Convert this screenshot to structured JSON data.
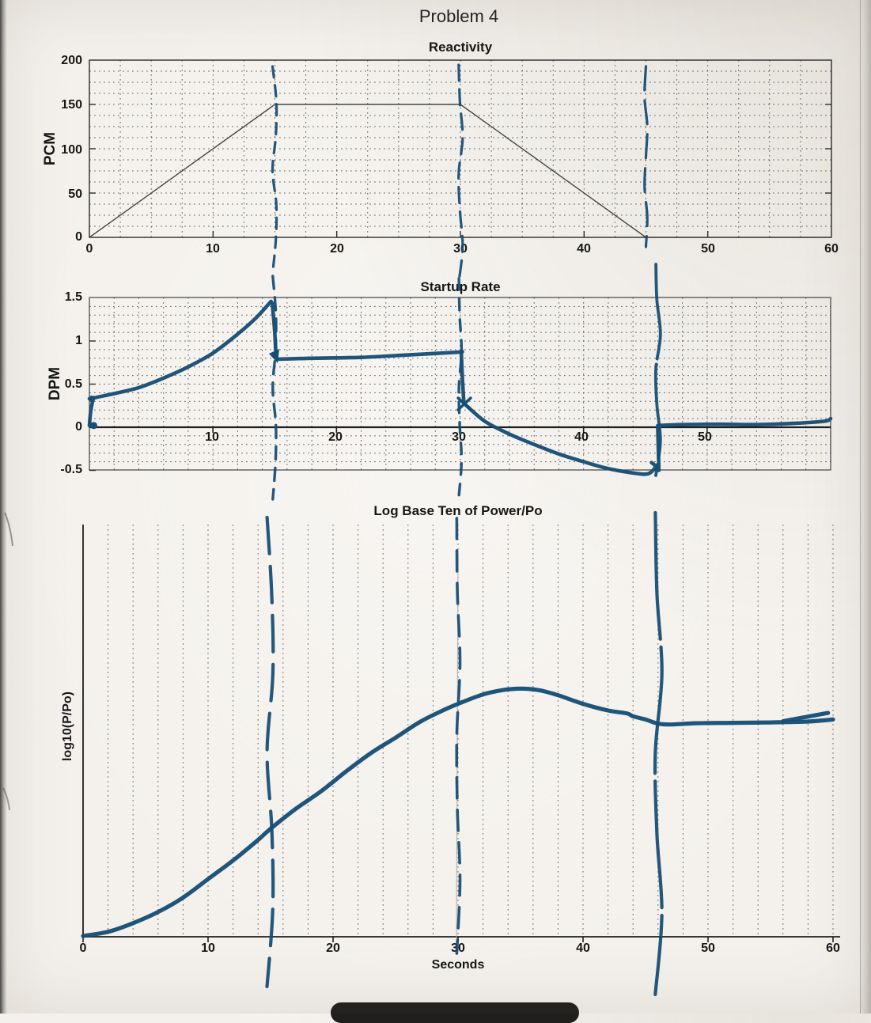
{
  "page": {
    "title": "Problem 4"
  },
  "charts": [
    {
      "id": "reactivity",
      "title": "Reactivity",
      "ylabel": "PCM",
      "y_ticks": [
        "200",
        "150",
        "100",
        "50",
        "0"
      ],
      "x_ticks": [
        "0",
        "10",
        "20",
        "30",
        "40",
        "50",
        "60"
      ]
    },
    {
      "id": "startup-rate",
      "title": "Startup Rate",
      "ylabel": "DPM",
      "y_ticks": [
        "1.5",
        "1",
        "0.5",
        "0",
        "-0.5"
      ],
      "x_ticks": [
        "10",
        "20",
        "30",
        "40",
        "50"
      ]
    },
    {
      "id": "log-power",
      "title": "Log Base Ten of Power/Po",
      "ylabel": "log10(P/Po)",
      "xlabel": "Seconds",
      "x_ticks": [
        "0",
        "10",
        "20",
        "30",
        "40",
        "50",
        "60"
      ]
    }
  ],
  "chart_data": [
    {
      "type": "line",
      "title": "Reactivity",
      "xlabel": "Seconds",
      "ylabel": "PCM",
      "xlim": [
        0,
        60
      ],
      "ylim": [
        0,
        200
      ],
      "grid": true,
      "series": [
        {
          "name": "reactivity-ramp-printed",
          "style": "printed-thin",
          "x": [
            0,
            15,
            30,
            45,
            60
          ],
          "y": [
            0,
            150,
            150,
            0,
            0
          ]
        }
      ]
    },
    {
      "type": "line",
      "title": "Startup Rate",
      "xlabel": "Seconds",
      "ylabel": "DPM",
      "xlim": [
        0,
        60
      ],
      "ylim": [
        -0.5,
        1.5
      ],
      "grid": true,
      "series": [
        {
          "name": "startup-rate-hand-ink",
          "style": "hand-ink",
          "strokes": [
            {
              "x": [
                0,
                0.1,
                0.3
              ],
              "y": [
                0.02,
                0.18,
                0.33
              ]
            },
            {
              "x": [
                0,
                2,
                4,
                6,
                8,
                10,
                12,
                13.5,
                14.7
              ],
              "y": [
                0.33,
                0.39,
                0.46,
                0.57,
                0.7,
                0.86,
                1.08,
                1.27,
                1.46
              ]
            },
            {
              "x": [
                14.8,
                15,
                15.1
              ],
              "y": [
                1.44,
                1.1,
                0.82
              ]
            },
            {
              "x": [
                15.3,
                18,
                22,
                26,
                29.8,
                30.1
              ],
              "y": [
                0.79,
                0.8,
                0.81,
                0.84,
                0.87,
                0.88
              ]
            },
            {
              "x": [
                30.1,
                30.2,
                30.3
              ],
              "y": [
                0.86,
                0.55,
                0.3
              ]
            },
            {
              "x": [
                30.3,
                32,
                34,
                36,
                38,
                40,
                42,
                44,
                45.2,
                45.8,
                45.5
              ],
              "y": [
                0.28,
                0.07,
                -0.08,
                -0.2,
                -0.31,
                -0.4,
                -0.48,
                -0.53,
                -0.54,
                -0.46,
                -0.41
              ]
            },
            {
              "x": [
                46.1,
                46.0
              ],
              "y": [
                -0.5,
                0.0
              ]
            },
            {
              "x": [
                46,
                48,
                51,
                54,
                57,
                59.5,
                60
              ],
              "y": [
                0.02,
                0.03,
                0.035,
                0.03,
                0.045,
                0.07,
                0.1
              ]
            }
          ]
        }
      ]
    },
    {
      "type": "line",
      "title": "Log Base Ten of Power/Po",
      "xlabel": "Seconds",
      "ylabel": "log10(P/Po)",
      "xlim": [
        0,
        60
      ],
      "ylim": null,
      "y_unit": "fraction of plotted axis height (no y tick labels printed)",
      "grid": true,
      "series": [
        {
          "name": "log-power-hand-ink",
          "style": "hand-ink",
          "strokes": [
            {
              "x": [
                0,
                2,
                4,
                6,
                8,
                10,
                12,
                14,
                15,
                17,
                19,
                21,
                23,
                25,
                27,
                29,
                30,
                32,
                33.5,
                35,
                36.5,
                38,
                40,
                42,
                43.5,
                44,
                45,
                46,
                47,
                49,
                52,
                55,
                58,
                60
              ],
              "y": [
                0.002,
                0.012,
                0.033,
                0.06,
                0.095,
                0.14,
                0.185,
                0.235,
                0.262,
                0.31,
                0.352,
                0.4,
                0.445,
                0.483,
                0.522,
                0.552,
                0.565,
                0.588,
                0.598,
                0.602,
                0.598,
                0.586,
                0.565,
                0.549,
                0.542,
                0.535,
                0.527,
                0.517,
                0.515,
                0.518,
                0.519,
                0.52,
                0.522,
                0.527
              ]
            },
            {
              "x": [
                56,
                59.6
              ],
              "y": [
                0.523,
                0.543
              ]
            }
          ]
        }
      ]
    }
  ],
  "annotations": {
    "ink_color": "#174e75",
    "marker_times": {
      "reactivity": [
        15,
        30,
        45
      ],
      "startup_rate": [
        15,
        30,
        46
      ],
      "log_power": [
        15,
        30,
        46
      ]
    }
  }
}
